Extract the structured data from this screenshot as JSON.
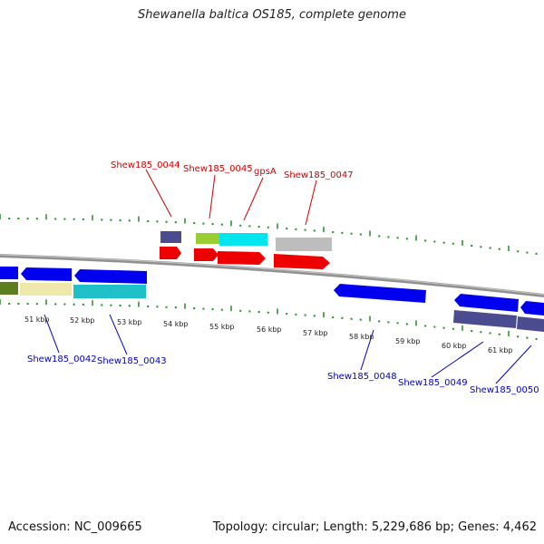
{
  "title": "Shewanella baltica OS185, complete genome",
  "footer": {
    "accession": "Accession: NC_009665",
    "topology": "Topology: circular; Length: 5,229,686 bp; Genes: 4,462"
  },
  "colors": {
    "forward_label": "#cc0000",
    "reverse_label": "#0000bb",
    "backbone": "#888888",
    "ticks": "#228B22"
  },
  "forward_genes": [
    "Shew185_0044",
    "Shew185_0045",
    "gpsA",
    "Shew185_0047"
  ],
  "reverse_genes": [
    "Shew185_0042",
    "Shew185_0043",
    "Shew185_0048",
    "Shew185_0049",
    "Shew185_0050"
  ],
  "scale_labels": [
    "51 kbp",
    "52 kbp",
    "53 kbp",
    "54 kbp",
    "55 kbp",
    "56 kbp",
    "57 kbp",
    "58 kbp",
    "59 kbp",
    "60 kbp",
    "61 kbp"
  ]
}
